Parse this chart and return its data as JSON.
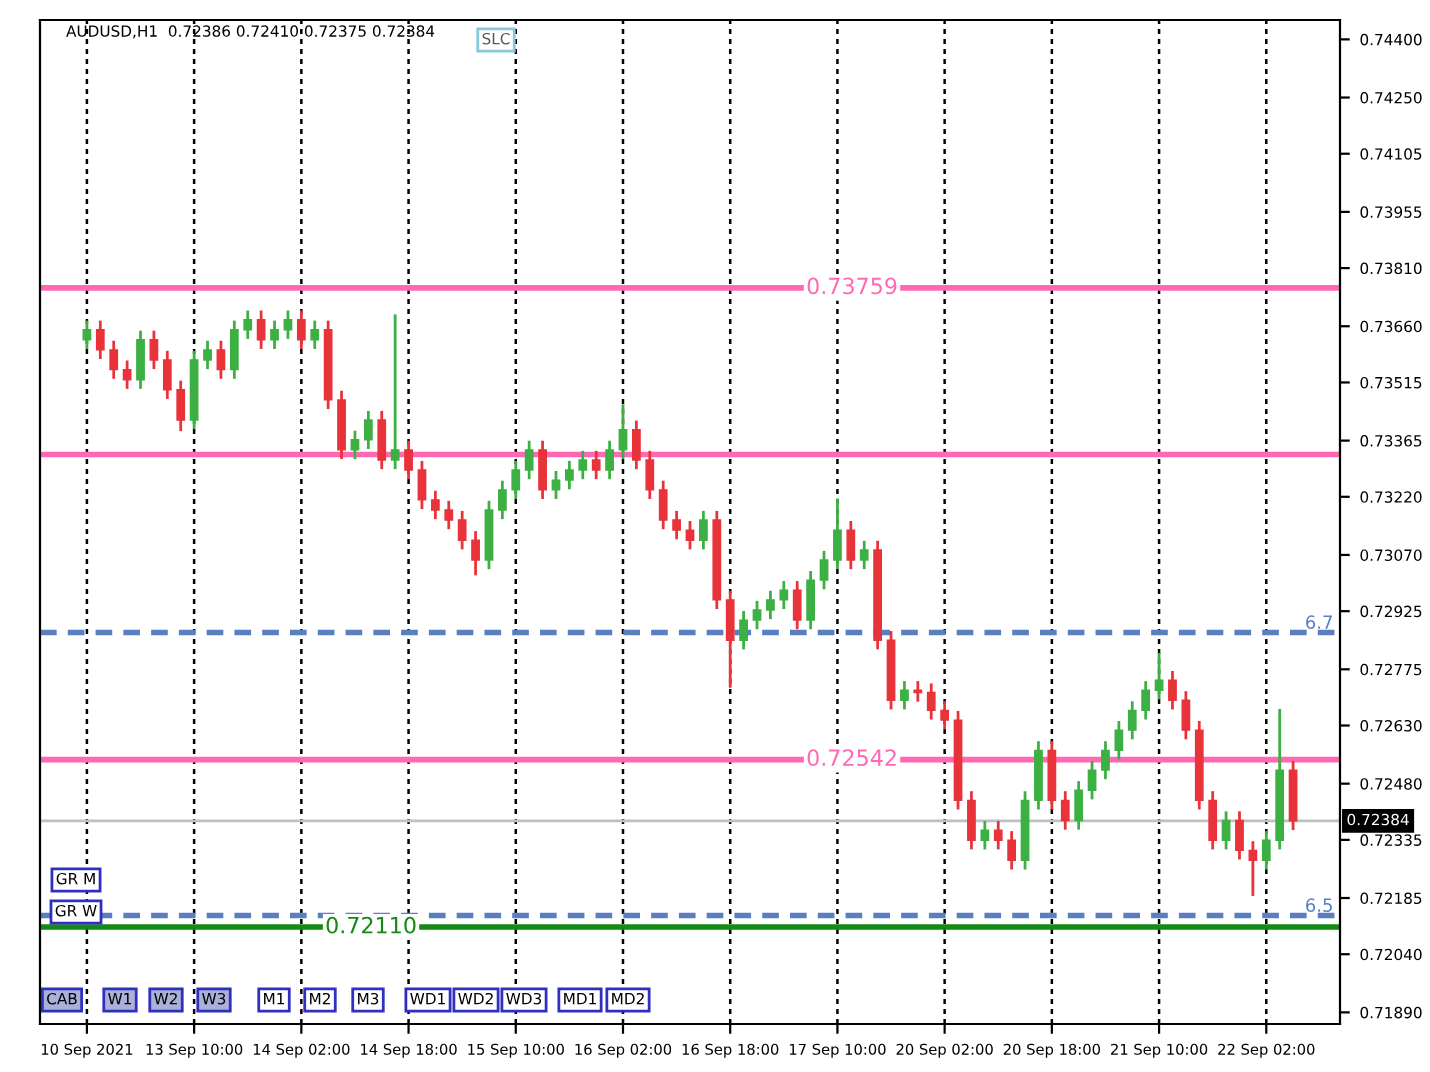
{
  "chart_data": {
    "type": "candlestick",
    "title": "AUDUSD,H1  0.72386 0.72410 0.72375 0.72384",
    "categories": [
      "10 Sep 2021",
      null,
      null,
      null,
      null,
      null,
      null,
      null,
      "13 Sep 10:00",
      null,
      null,
      null,
      null,
      null,
      null,
      null,
      "14 Sep 02:00",
      null,
      null,
      null,
      null,
      null,
      null,
      null,
      "14 Sep 18:00",
      null,
      null,
      null,
      null,
      null,
      null,
      null,
      "15 Sep 10:00",
      null,
      null,
      null,
      null,
      null,
      null,
      null,
      "16 Sep 02:00",
      null,
      null,
      null,
      null,
      null,
      null,
      null,
      "16 Sep 18:00",
      null,
      null,
      null,
      null,
      null,
      null,
      null,
      "17 Sep 10:00",
      null,
      null,
      null,
      null,
      null,
      null,
      null,
      "20 Sep 02:00",
      null,
      null,
      null,
      null,
      null,
      null,
      null,
      "20 Sep 18:00",
      null,
      null,
      null,
      null,
      null,
      null,
      null,
      "21 Sep 10:00",
      null,
      null,
      null,
      null,
      null,
      null,
      null,
      "22 Sep 02:00",
      null,
      null
    ],
    "ohlc": [
      [
        0.73625,
        0.73671,
        0.73605,
        0.73651
      ],
      [
        0.73651,
        0.73671,
        0.73579,
        0.73599
      ],
      [
        0.73599,
        0.73619,
        0.73528,
        0.73548
      ],
      [
        0.73548,
        0.73568,
        0.73502,
        0.73522
      ],
      [
        0.73522,
        0.73645,
        0.73502,
        0.73625
      ],
      [
        0.73625,
        0.73645,
        0.73553,
        0.73573
      ],
      [
        0.73573,
        0.73593,
        0.73476,
        0.73496
      ],
      [
        0.73496,
        0.73516,
        0.73393,
        0.73418
      ],
      [
        0.73418,
        0.73593,
        0.73398,
        0.73573
      ],
      [
        0.73573,
        0.73619,
        0.73553,
        0.73599
      ],
      [
        0.73599,
        0.73619,
        0.73528,
        0.73548
      ],
      [
        0.73548,
        0.73671,
        0.73528,
        0.73651
      ],
      [
        0.73651,
        0.73697,
        0.73631,
        0.73677
      ],
      [
        0.73677,
        0.73697,
        0.73605,
        0.73625
      ],
      [
        0.73625,
        0.73671,
        0.73605,
        0.73651
      ],
      [
        0.73651,
        0.73697,
        0.73631,
        0.73677
      ],
      [
        0.73677,
        0.73697,
        0.73605,
        0.73625
      ],
      [
        0.73625,
        0.73671,
        0.73605,
        0.73651
      ],
      [
        0.73651,
        0.73671,
        0.7345,
        0.7347
      ],
      [
        0.7347,
        0.7349,
        0.73321,
        0.73341
      ],
      [
        0.73341,
        0.73387,
        0.73321,
        0.73367
      ],
      [
        0.73367,
        0.73438,
        0.73347,
        0.73418
      ],
      [
        0.73418,
        0.73438,
        0.73295,
        0.73315
      ],
      [
        0.73315,
        0.73687,
        0.73295,
        0.73341
      ],
      [
        0.73341,
        0.73361,
        0.73269,
        0.73289
      ],
      [
        0.73289,
        0.73309,
        0.73192,
        0.73212
      ],
      [
        0.73212,
        0.73232,
        0.73166,
        0.73186
      ],
      [
        0.73186,
        0.73206,
        0.7314,
        0.7316
      ],
      [
        0.7316,
        0.7318,
        0.73088,
        0.73108
      ],
      [
        0.73108,
        0.73128,
        0.73021,
        0.73057
      ],
      [
        0.73057,
        0.73206,
        0.73037,
        0.73186
      ],
      [
        0.73186,
        0.73258,
        0.73166,
        0.73238
      ],
      [
        0.73238,
        0.73309,
        0.73218,
        0.73289
      ],
      [
        0.73289,
        0.73361,
        0.73269,
        0.73341
      ],
      [
        0.73341,
        0.73361,
        0.73218,
        0.73238
      ],
      [
        0.73238,
        0.73283,
        0.73218,
        0.73263
      ],
      [
        0.73263,
        0.73309,
        0.73243,
        0.73289
      ],
      [
        0.73289,
        0.73335,
        0.73269,
        0.73315
      ],
      [
        0.73315,
        0.73335,
        0.73269,
        0.73289
      ],
      [
        0.73289,
        0.73361,
        0.73269,
        0.73341
      ],
      [
        0.73341,
        0.73455,
        0.73321,
        0.73393
      ],
      [
        0.73393,
        0.73413,
        0.73295,
        0.73315
      ],
      [
        0.73315,
        0.73335,
        0.73218,
        0.73238
      ],
      [
        0.73238,
        0.73258,
        0.7314,
        0.7316
      ],
      [
        0.7316,
        0.7318,
        0.73114,
        0.73134
      ],
      [
        0.73134,
        0.73154,
        0.73088,
        0.73108
      ],
      [
        0.73108,
        0.7318,
        0.73088,
        0.7316
      ],
      [
        0.7316,
        0.7318,
        0.72934,
        0.72954
      ],
      [
        0.72954,
        0.72974,
        0.72731,
        0.7285
      ],
      [
        0.7285,
        0.72922,
        0.7283,
        0.72902
      ],
      [
        0.72902,
        0.72948,
        0.72882,
        0.72928
      ],
      [
        0.72928,
        0.72974,
        0.72908,
        0.72954
      ],
      [
        0.72954,
        0.72999,
        0.72934,
        0.72979
      ],
      [
        0.72979,
        0.72999,
        0.72882,
        0.72902
      ],
      [
        0.72902,
        0.73025,
        0.72882,
        0.73005
      ],
      [
        0.73005,
        0.73077,
        0.72985,
        0.73057
      ],
      [
        0.73057,
        0.73212,
        0.73037,
        0.73134
      ],
      [
        0.73134,
        0.73154,
        0.73037,
        0.73057
      ],
      [
        0.73057,
        0.73103,
        0.73037,
        0.73083
      ],
      [
        0.73083,
        0.73103,
        0.7283,
        0.7285
      ],
      [
        0.7285,
        0.7287,
        0.72675,
        0.72695
      ],
      [
        0.72695,
        0.72741,
        0.72675,
        0.72721
      ],
      [
        0.72721,
        0.72741,
        0.72695,
        0.72715
      ],
      [
        0.72715,
        0.72735,
        0.72649,
        0.72669
      ],
      [
        0.72669,
        0.72689,
        0.72624,
        0.72644
      ],
      [
        0.72644,
        0.72664,
        0.72417,
        0.72437
      ],
      [
        0.72437,
        0.72457,
        0.72314,
        0.72334
      ],
      [
        0.72334,
        0.7238,
        0.72314,
        0.7236
      ],
      [
        0.7236,
        0.7238,
        0.72314,
        0.72334
      ],
      [
        0.72334,
        0.72354,
        0.72262,
        0.72282
      ],
      [
        0.72282,
        0.72457,
        0.72262,
        0.72437
      ],
      [
        0.72437,
        0.72586,
        0.72417,
        0.72566
      ],
      [
        0.72566,
        0.72586,
        0.72417,
        0.72437
      ],
      [
        0.72437,
        0.72457,
        0.72365,
        0.72385
      ],
      [
        0.72385,
        0.72483,
        0.72365,
        0.72463
      ],
      [
        0.72463,
        0.72535,
        0.72443,
        0.72515
      ],
      [
        0.72515,
        0.72586,
        0.72495,
        0.72566
      ],
      [
        0.72566,
        0.72638,
        0.72546,
        0.72618
      ],
      [
        0.72618,
        0.72689,
        0.72598,
        0.72669
      ],
      [
        0.72669,
        0.72741,
        0.72649,
        0.72721
      ],
      [
        0.72721,
        0.72814,
        0.72701,
        0.72747
      ],
      [
        0.72747,
        0.72767,
        0.72675,
        0.72695
      ],
      [
        0.72695,
        0.72715,
        0.72598,
        0.72618
      ],
      [
        0.72618,
        0.72638,
        0.72417,
        0.72437
      ],
      [
        0.72437,
        0.72457,
        0.72314,
        0.72334
      ],
      [
        0.72334,
        0.72405,
        0.72314,
        0.72385
      ],
      [
        0.72385,
        0.72405,
        0.72288,
        0.72308
      ],
      [
        0.72308,
        0.72328,
        0.72194,
        0.72282
      ],
      [
        0.72282,
        0.72354,
        0.72262,
        0.72334
      ],
      [
        0.72334,
        0.72669,
        0.72314,
        0.72515
      ],
      [
        0.72515,
        0.72535,
        0.72364,
        0.72384
      ]
    ],
    "colors": [
      "#3cb043",
      "#e8333a",
      "#e8333a",
      "#e8333a",
      "#3cb043",
      "#e8333a",
      "#e8333a",
      "#e8333a",
      "#3cb043",
      "#3cb043",
      "#e8333a",
      "#3cb043",
      "#3cb043",
      "#e8333a",
      "#3cb043",
      "#3cb043",
      "#e8333a",
      "#3cb043",
      "#e8333a",
      "#e8333a",
      "#3cb043",
      "#3cb043",
      "#e8333a",
      "#3cb043",
      "#e8333a",
      "#e8333a",
      "#e8333a",
      "#e8333a",
      "#e8333a",
      "#e8333a",
      "#3cb043",
      "#3cb043",
      "#3cb043",
      "#3cb043",
      "#e8333a",
      "#3cb043",
      "#3cb043",
      "#3cb043",
      "#e8333a",
      "#3cb043",
      "#3cb043",
      "#e8333a",
      "#e8333a",
      "#e8333a",
      "#e8333a",
      "#e8333a",
      "#3cb043",
      "#e8333a",
      "#e8333a",
      "#3cb043",
      "#3cb043",
      "#3cb043",
      "#3cb043",
      "#e8333a",
      "#3cb043",
      "#3cb043",
      "#3cb043",
      "#e8333a",
      "#3cb043",
      "#e8333a",
      "#e8333a",
      "#3cb043",
      "#e8333a",
      "#e8333a",
      "#e8333a",
      "#e8333a",
      "#e8333a",
      "#3cb043",
      "#e8333a",
      "#e8333a",
      "#3cb043",
      "#3cb043",
      "#e8333a",
      "#e8333a",
      "#3cb043",
      "#3cb043",
      "#3cb043",
      "#3cb043",
      "#3cb043",
      "#3cb043",
      "#3cb043",
      "#e8333a",
      "#e8333a",
      "#e8333a",
      "#e8333a",
      "#3cb043",
      "#e8333a",
      "#e8333a",
      "#3cb043",
      "#3cb043",
      "#e8333a"
    ],
    "ylim": [
      0.7186,
      0.7445
    ],
    "yticks": [
      {
        "value": 0.744,
        "label": "0.74400"
      },
      {
        "value": 0.7425,
        "label": "0.74250"
      },
      0.74105,
      0.73955,
      {
        "value": 0.7381,
        "label": "0.73810"
      },
      {
        "value": 0.7366,
        "label": "0.73660"
      },
      0.73515,
      0.73365,
      {
        "value": 0.7322,
        "label": "0.73220"
      },
      {
        "value": 0.7307,
        "label": "0.73070"
      },
      0.72925,
      0.72775,
      {
        "value": 0.7263,
        "label": "0.72630"
      },
      {
        "value": 0.7248,
        "label": "0.72480"
      },
      0.72335,
      0.72185,
      {
        "value": 0.7204,
        "label": "0.72040"
      },
      {
        "value": 0.7189,
        "label": "0.71890"
      }
    ],
    "grid": "x",
    "ref_lines": [
      {
        "axis": "y",
        "value": 0.73759,
        "label": "0.73759",
        "color": "#ff69b4"
      },
      {
        "axis": "y",
        "value": 0.73329,
        "label": null,
        "color": "#ff69b4"
      },
      {
        "axis": "y",
        "value": 0.72542,
        "label": "0.72542",
        "color": "#ff69b4"
      },
      {
        "axis": "y",
        "value": 0.7211,
        "label": "0.72110",
        "color": "#138a13"
      },
      {
        "axis": "y",
        "value": 0.7287,
        "label": null,
        "color": "#5a7fc0",
        "line_style": "dashed"
      },
      {
        "axis": "y",
        "value": 0.7214,
        "label": null,
        "color": "#5a7fc0",
        "line_style": "dashed"
      },
      {
        "axis": "y",
        "value": 0.72384,
        "label": "0.72384",
        "color": "#c0c0c0"
      }
    ],
    "annotations": [
      {
        "text": "6.7",
        "y": 0.7287
      },
      {
        "text": "6.5",
        "y": 0.7214
      },
      "SLC",
      "GR M",
      "GR W",
      "CAB",
      "W1",
      "W2",
      "W3",
      "M1",
      "M2",
      "M3",
      "WD1",
      "WD2",
      "WD3",
      "MD1",
      "MD2"
    ]
  }
}
